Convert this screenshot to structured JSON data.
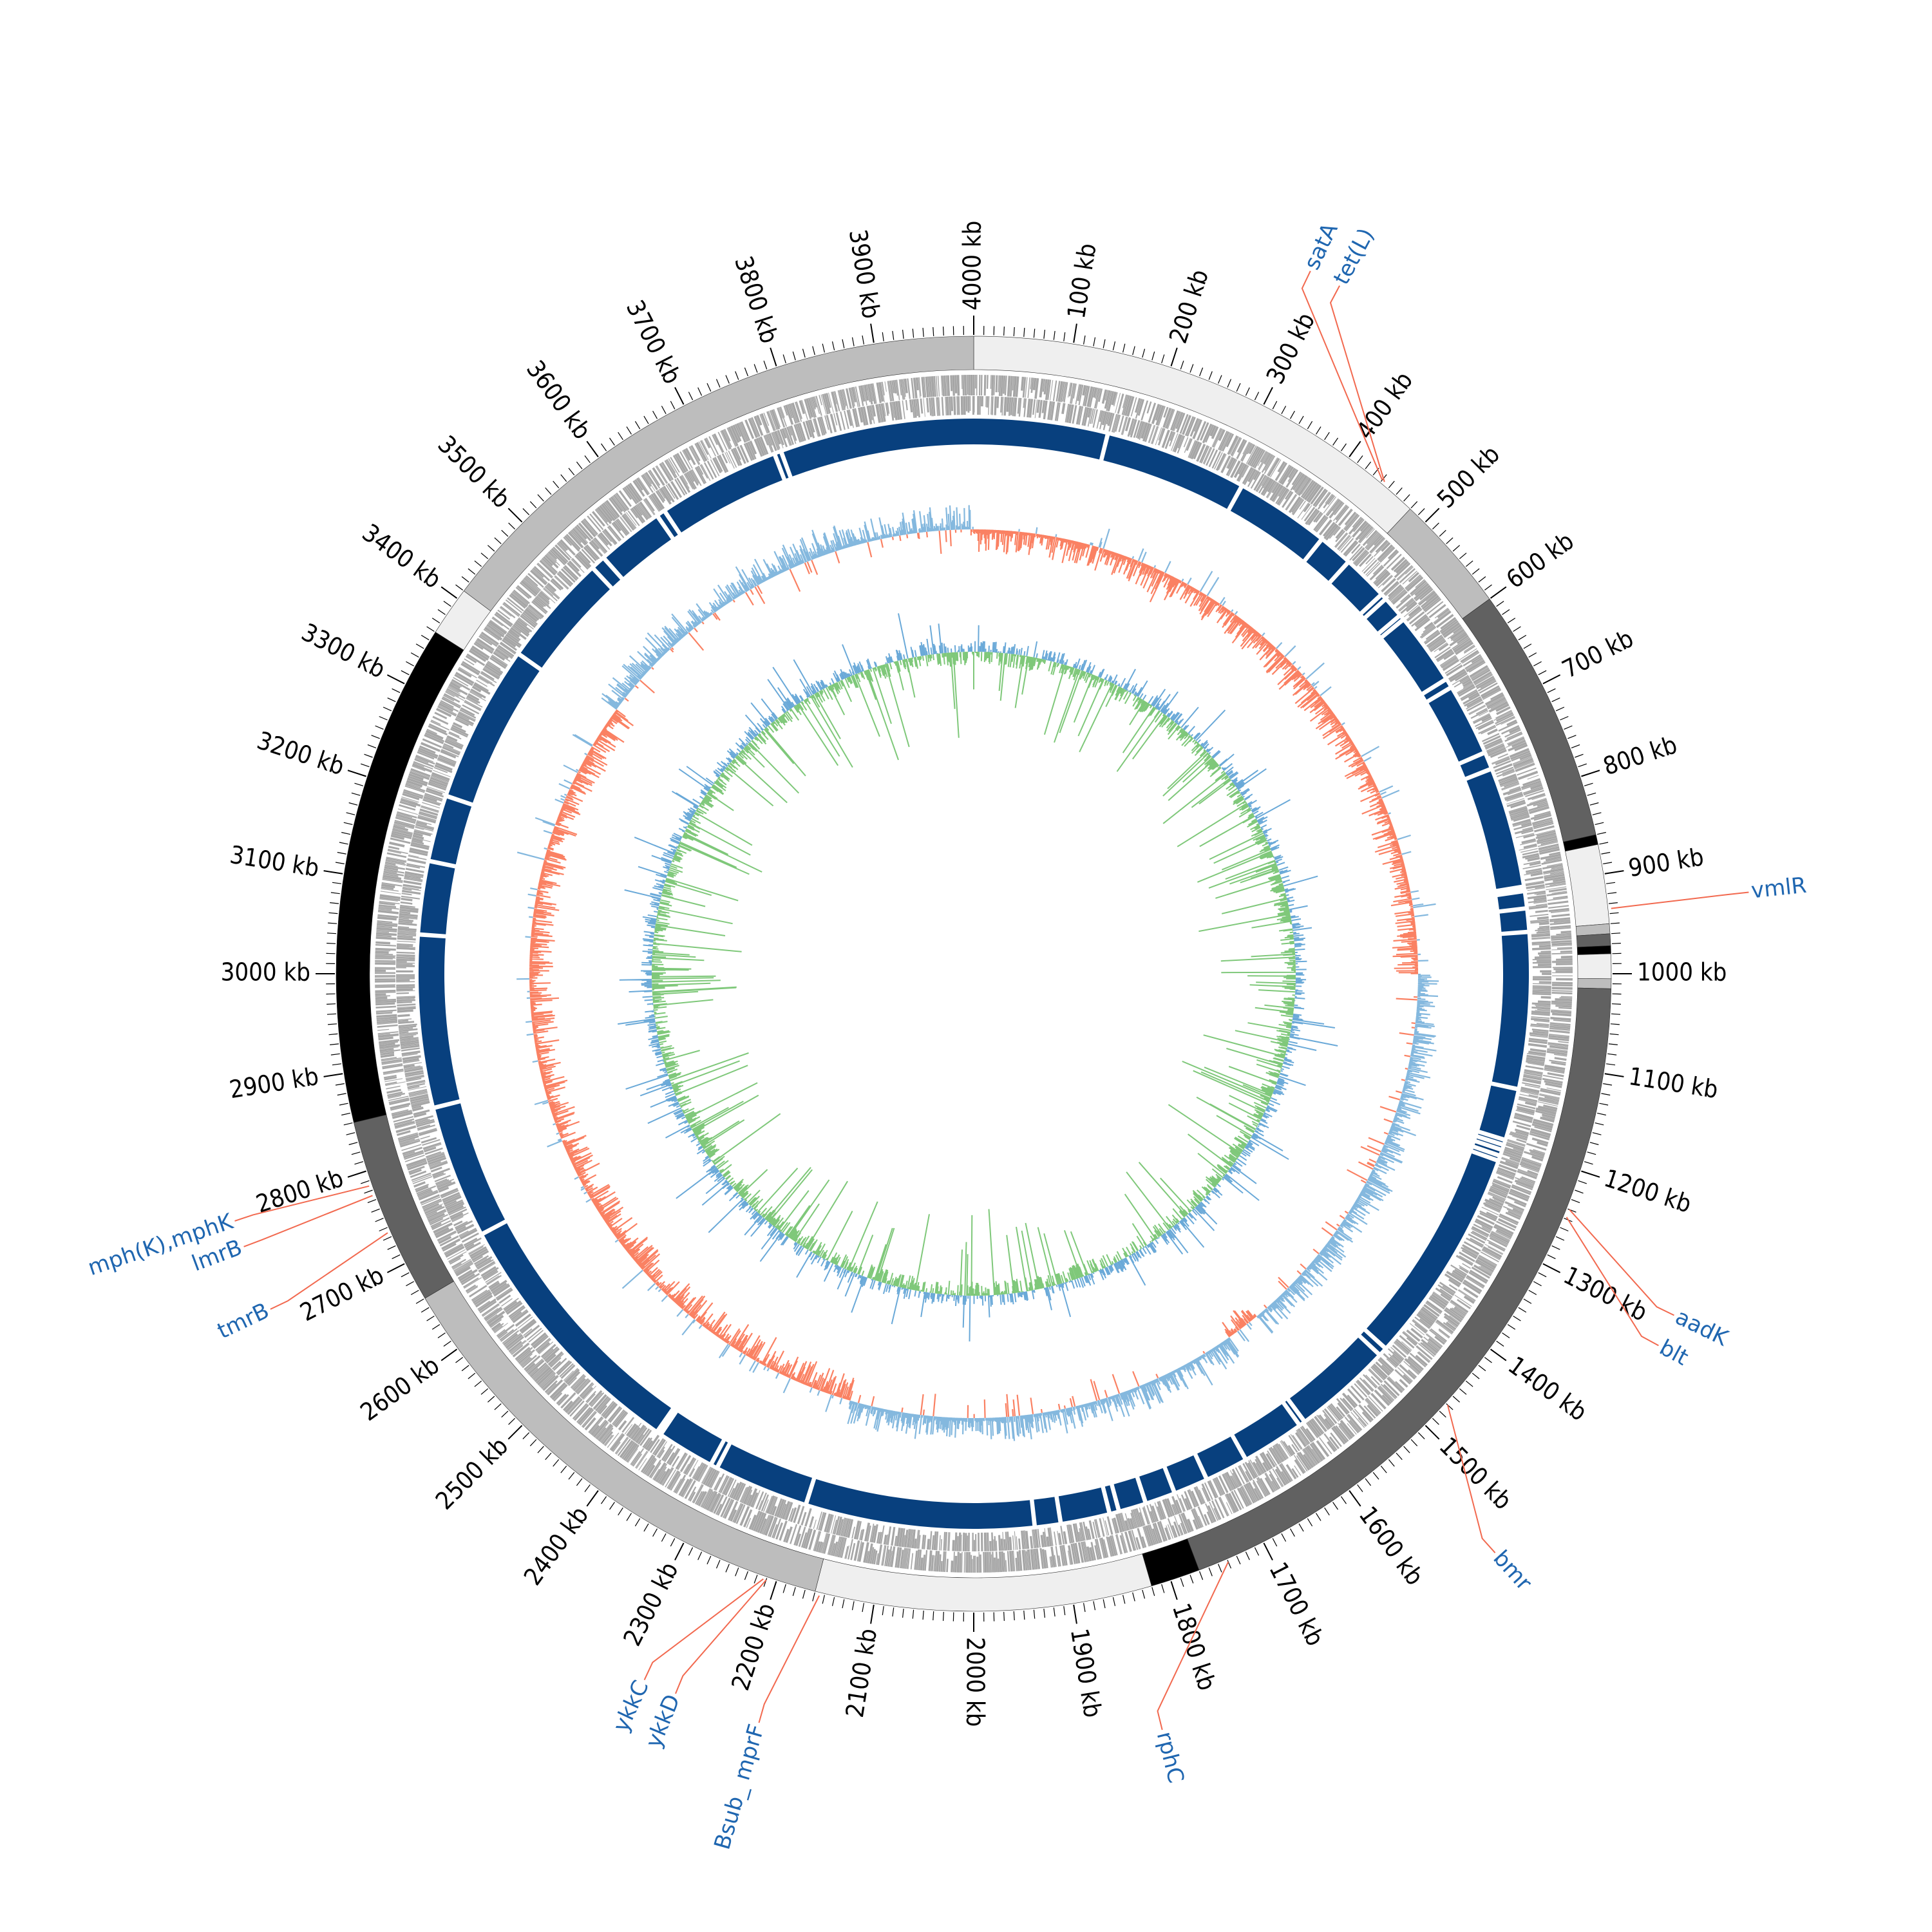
{
  "genome": {
    "total_kb": 4000,
    "tick_unit": "kb",
    "major_tick_step_kb": 100,
    "minor_tick_step_kb": 10,
    "tick_labels": [
      "4000 kb",
      "100 kb",
      "200 kb",
      "300 kb",
      "400 kb",
      "500 kb",
      "600 kb",
      "700 kb",
      "800 kb",
      "900 kb",
      "1000 kb",
      "1100 kb",
      "1200 kb",
      "1300 kb",
      "1400 kb",
      "1500 kb",
      "1600 kb",
      "1700 kb",
      "1800 kb",
      "1900 kb",
      "2000 kb",
      "2100 kb",
      "2200 kb",
      "2300 kb",
      "2400 kb",
      "2500 kb",
      "2600 kb",
      "2700 kb",
      "2800 kb",
      "2900 kb",
      "3000 kb",
      "3100 kb",
      "3200 kb",
      "3300 kb",
      "3400 kb",
      "3500 kb",
      "3600 kb",
      "3700 kb",
      "3800 kb",
      "3900 kb"
    ]
  },
  "colors": {
    "contig_palette": [
      "#efefef",
      "#bdbdbd",
      "#616161",
      "#000000"
    ],
    "cds": "#a6a6a6",
    "blast_ring": "#08407e",
    "gc_skew_positive": "#fa8163",
    "gc_skew_negative": "#84b8de",
    "gc_content_high": "#6aa9d8",
    "gc_content_low": "#7fc87a",
    "callout_line": "#f2694f",
    "gene_label": "#1f66b0"
  },
  "contigs": [
    {
      "start": 0,
      "end": 480,
      "shade": 0
    },
    {
      "start": 480,
      "end": 600,
      "shade": 1
    },
    {
      "start": 600,
      "end": 860,
      "shade": 2
    },
    {
      "start": 860,
      "end": 870,
      "shade": 3
    },
    {
      "start": 870,
      "end": 950,
      "shade": 0
    },
    {
      "start": 950,
      "end": 960,
      "shade": 1
    },
    {
      "start": 960,
      "end": 972,
      "shade": 2
    },
    {
      "start": 972,
      "end": 980,
      "shade": 3
    },
    {
      "start": 980,
      "end": 1005,
      "shade": 0
    },
    {
      "start": 1005,
      "end": 1015,
      "shade": 1
    },
    {
      "start": 1015,
      "end": 1770,
      "shade": 2
    },
    {
      "start": 1770,
      "end": 1820,
      "shade": 3
    },
    {
      "start": 1820,
      "end": 2160,
      "shade": 0
    },
    {
      "start": 2160,
      "end": 2660,
      "shade": 1
    },
    {
      "start": 2660,
      "end": 2850,
      "shade": 2
    },
    {
      "start": 2850,
      "end": 3360,
      "shade": 3
    },
    {
      "start": 3360,
      "end": 3410,
      "shade": 0
    },
    {
      "start": 3410,
      "end": 4000,
      "shade": 1
    }
  ],
  "blast_gaps_kb": [
    155,
    320,
    430,
    470,
    523,
    530,
    555,
    561,
    645,
    656,
    740,
    760,
    900,
    905,
    925,
    952,
    1133,
    1193,
    1199,
    1205,
    1212,
    1218,
    1470,
    1480,
    1595,
    1602,
    1675,
    1725,
    1765,
    1800,
    1832,
    1843,
    1900,
    1930,
    2195,
    2305,
    2313,
    2380,
    2385,
    2690,
    2845,
    3045,
    3130,
    3207,
    3390,
    3520,
    3537,
    3615,
    3625,
    3767,
    3775
  ],
  "gc_skew_sign_changes_kb": [
    1560,
    1610,
    3405
  ],
  "resistance_genes": [
    {
      "label": "satA",
      "position_kb": 440,
      "text_angle_deg": 25.6
    },
    {
      "label": "tet(L)",
      "position_kb": 443,
      "text_angle_deg": 28.0
    },
    {
      "label": "vmlR",
      "position_kb": 935,
      "text_angle_deg": 84.0
    },
    {
      "label": "aadK",
      "position_kb": 1240,
      "text_angle_deg": 116.0
    },
    {
      "label": "blt",
      "position_kb": 1248,
      "text_angle_deg": 118.5
    },
    {
      "label": "bmr",
      "position_kb": 1470,
      "text_angle_deg": 138.0
    },
    {
      "label": "rphC",
      "position_kb": 1740,
      "text_angle_deg": 166.0
    },
    {
      "label": "Bsub_ mprF",
      "position_kb": 2155,
      "text_angle_deg": 196.0
    },
    {
      "label": "ykkD",
      "position_kb": 2210,
      "text_angle_deg": 202.5
    },
    {
      "label": "ykkC",
      "position_kb": 2213,
      "text_angle_deg": 205.0
    },
    {
      "label": "tmrB",
      "position_kb": 2735,
      "text_angle_deg": 244.5
    },
    {
      "label": "lmrB",
      "position_kb": 2775,
      "text_angle_deg": 249.5
    },
    {
      "label": "mph(K),mphK",
      "position_kb": 2785,
      "text_angle_deg": 251.5
    }
  ]
}
